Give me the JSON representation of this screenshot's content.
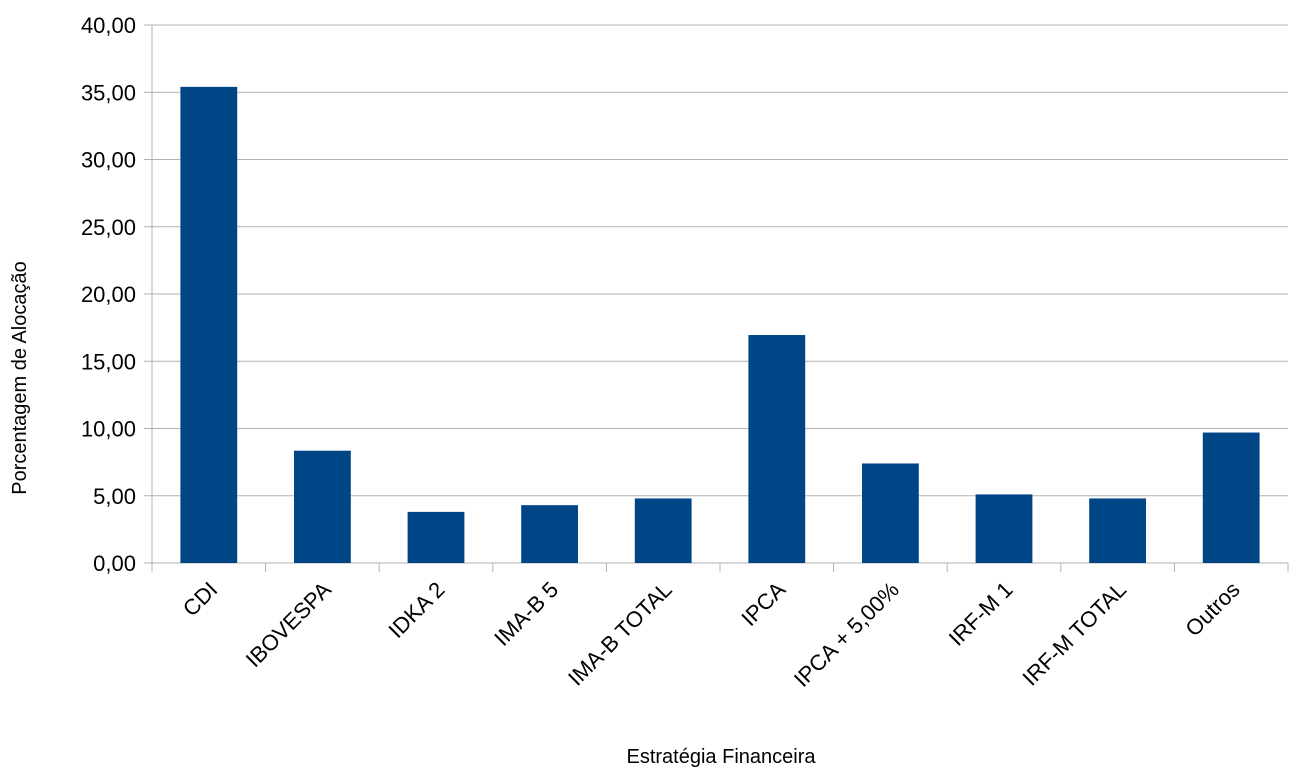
{
  "chart_data": {
    "type": "bar",
    "title": "",
    "xlabel": "Estratégia Financeira",
    "ylabel": "Porcentagem de Alocação",
    "categories": [
      "CDI",
      "IBOVESPA",
      "IDKA 2",
      "IMA-B 5",
      "IMA-B TOTAL",
      "IPCA",
      "IPCA + 5,00%",
      "IRF-M 1",
      "IRF-M TOTAL",
      "Outros"
    ],
    "values": [
      35.4,
      8.35,
      3.8,
      4.3,
      4.8,
      16.95,
      7.4,
      5.1,
      4.8,
      9.7
    ],
    "ylim": [
      0,
      40
    ],
    "yticks": [
      "0,00",
      "5,00",
      "10,00",
      "15,00",
      "20,00",
      "25,00",
      "30,00",
      "35,00",
      "40,00"
    ],
    "grid": true,
    "legend": "none",
    "bar_color": "#004586"
  }
}
